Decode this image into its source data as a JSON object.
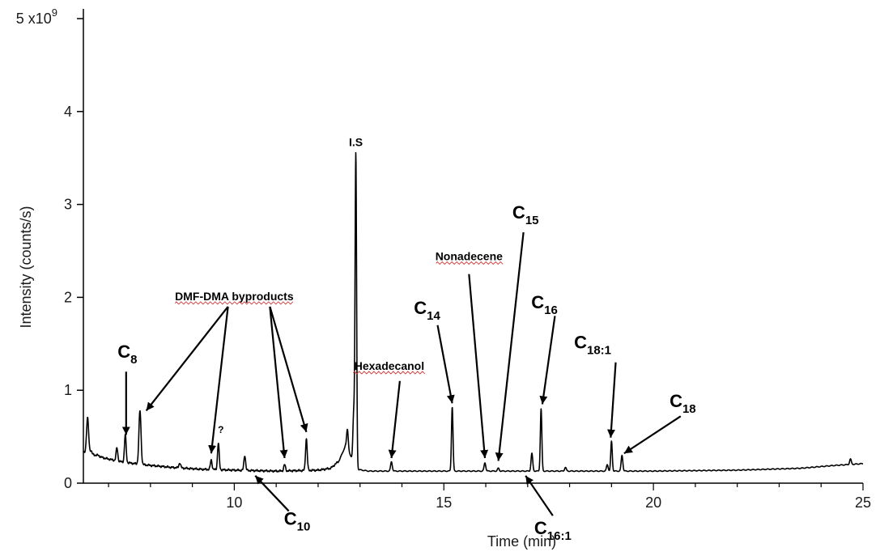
{
  "chart_data": {
    "type": "line",
    "xlabel": "Time (min)",
    "ylabel": "Intensity (counts/s)",
    "y_exponent_label": "x10",
    "y_exponent_power": "9",
    "xlim": [
      6.4,
      25
    ],
    "ylim": [
      0,
      5
    ],
    "x_ticks": [
      {
        "value": 10,
        "label": "10"
      },
      {
        "value": 15,
        "label": "15"
      },
      {
        "value": 20,
        "label": "20"
      },
      {
        "value": 25,
        "label": "25"
      }
    ],
    "y_ticks": [
      {
        "value": 0,
        "label": "0"
      },
      {
        "value": 1,
        "label": "1"
      },
      {
        "value": 2,
        "label": "2"
      },
      {
        "value": 3,
        "label": "3"
      },
      {
        "value": 4,
        "label": "4"
      },
      {
        "value": 5,
        "label": "5"
      }
    ],
    "grid": false,
    "line_color": "#000000",
    "baseline": [
      [
        6.4,
        0.33
      ],
      [
        6.55,
        0.32
      ],
      [
        6.9,
        0.27
      ],
      [
        7.3,
        0.23
      ],
      [
        7.8,
        0.2
      ],
      [
        8.5,
        0.17
      ],
      [
        9.2,
        0.15
      ],
      [
        10.0,
        0.14
      ],
      [
        11.0,
        0.13
      ],
      [
        12.0,
        0.14
      ],
      [
        12.3,
        0.16
      ],
      [
        12.5,
        0.24
      ],
      [
        12.65,
        0.4
      ],
      [
        12.75,
        0.32
      ],
      [
        12.9,
        0.15
      ],
      [
        13.2,
        0.13
      ],
      [
        15.0,
        0.13
      ],
      [
        18.0,
        0.13
      ],
      [
        20.0,
        0.13
      ],
      [
        22.0,
        0.14
      ],
      [
        23.5,
        0.16
      ],
      [
        24.3,
        0.19
      ],
      [
        25.0,
        0.21
      ]
    ],
    "peaks": [
      {
        "rt": 6.5,
        "height": 0.7,
        "width": 0.025
      },
      {
        "rt": 6.58,
        "height": 0.35,
        "width": 0.02
      },
      {
        "rt": 6.75,
        "height": 0.3,
        "width": 0.03
      },
      {
        "rt": 7.2,
        "height": 0.38,
        "width": 0.02
      },
      {
        "rt": 7.4,
        "height": 0.52,
        "width": 0.02
      },
      {
        "rt": 7.75,
        "height": 0.78,
        "width": 0.025
      },
      {
        "rt": 8.7,
        "height": 0.22,
        "width": 0.02
      },
      {
        "rt": 9.45,
        "height": 0.25,
        "width": 0.02
      },
      {
        "rt": 9.62,
        "height": 0.43,
        "width": 0.02
      },
      {
        "rt": 10.25,
        "height": 0.3,
        "width": 0.02
      },
      {
        "rt": 11.2,
        "height": 0.2,
        "width": 0.02
      },
      {
        "rt": 11.72,
        "height": 0.48,
        "width": 0.02
      },
      {
        "rt": 12.7,
        "height": 0.58,
        "width": 0.02
      },
      {
        "rt": 12.85,
        "height": 0.75,
        "width": 0.02
      },
      {
        "rt": 12.9,
        "height": 3.53,
        "width": 0.018
      },
      {
        "rt": 13.75,
        "height": 0.23,
        "width": 0.02
      },
      {
        "rt": 15.2,
        "height": 0.82,
        "width": 0.018
      },
      {
        "rt": 15.98,
        "height": 0.22,
        "width": 0.02
      },
      {
        "rt": 16.3,
        "height": 0.16,
        "width": 0.02
      },
      {
        "rt": 17.1,
        "height": 0.32,
        "width": 0.02
      },
      {
        "rt": 17.32,
        "height": 0.8,
        "width": 0.018
      },
      {
        "rt": 17.9,
        "height": 0.17,
        "width": 0.02
      },
      {
        "rt": 18.9,
        "height": 0.2,
        "width": 0.02
      },
      {
        "rt": 19.0,
        "height": 0.45,
        "width": 0.018
      },
      {
        "rt": 19.25,
        "height": 0.3,
        "width": 0.02
      },
      {
        "rt": 24.7,
        "height": 0.26,
        "width": 0.02
      }
    ],
    "peak_labels": [
      {
        "id": "c8",
        "main": "C",
        "sub": "8",
        "size": "lg",
        "label_rt": 7.45,
        "label_y": 1.35,
        "arrows": [
          {
            "from_rt": 7.42,
            "from_y": 1.2,
            "to_rt": 7.42,
            "to_y": 0.52
          }
        ]
      },
      {
        "id": "dmf",
        "main": "DMF-DMA byproducts",
        "sub": "",
        "size": "md",
        "label_rt": 10.0,
        "label_y": 1.97,
        "underline": "Whole",
        "arrows": [
          {
            "from_rt": 9.85,
            "from_y": 1.9,
            "to_rt": 7.9,
            "to_y": 0.78
          },
          {
            "from_rt": 9.85,
            "from_y": 1.9,
            "to_rt": 9.45,
            "to_y": 0.32
          },
          {
            "from_rt": 10.85,
            "from_y": 1.9,
            "to_rt": 11.2,
            "to_y": 0.27
          },
          {
            "from_rt": 10.85,
            "from_y": 1.9,
            "to_rt": 11.72,
            "to_y": 0.55
          }
        ]
      },
      {
        "id": "question",
        "main": "?",
        "sub": "",
        "size": "sm",
        "label_rt": 9.68,
        "label_y": 0.54,
        "arrows": []
      },
      {
        "id": "c10",
        "main": "C",
        "sub": "10",
        "size": "lg",
        "label_rt": 11.5,
        "label_y": -0.45,
        "arrows": [
          {
            "from_rt": 11.3,
            "from_y": -0.3,
            "to_rt": 10.5,
            "to_y": 0.08
          }
        ]
      },
      {
        "id": "is",
        "main": "I.S",
        "sub": "",
        "size": "md",
        "label_rt": 12.9,
        "label_y": 3.63,
        "arrows": []
      },
      {
        "id": "hexadecanol",
        "main": "Hexadecanol",
        "sub": "",
        "size": "md",
        "label_rt": 13.7,
        "label_y": 1.22,
        "underline": "Hexadecanol",
        "arrows": [
          {
            "from_rt": 13.95,
            "from_y": 1.1,
            "to_rt": 13.75,
            "to_y": 0.27
          }
        ]
      },
      {
        "id": "c14",
        "main": "C",
        "sub": "14",
        "size": "lg",
        "label_rt": 14.6,
        "label_y": 1.82,
        "arrows": [
          {
            "from_rt": 14.85,
            "from_y": 1.7,
            "to_rt": 15.2,
            "to_y": 0.86
          }
        ]
      },
      {
        "id": "nonadecene",
        "main": "Nonadecene",
        "sub": "",
        "size": "md",
        "label_rt": 15.6,
        "label_y": 2.4,
        "underline": "Nonadecene",
        "arrows": [
          {
            "from_rt": 15.6,
            "from_y": 2.25,
            "to_rt": 15.98,
            "to_y": 0.27
          }
        ]
      },
      {
        "id": "c15",
        "main": "C",
        "sub": "15",
        "size": "lg",
        "label_rt": 16.95,
        "label_y": 2.85,
        "arrows": [
          {
            "from_rt": 16.9,
            "from_y": 2.7,
            "to_rt": 16.3,
            "to_y": 0.24
          }
        ]
      },
      {
        "id": "c16",
        "main": "C",
        "sub": "16",
        "size": "lg",
        "label_rt": 17.4,
        "label_y": 1.88,
        "arrows": [
          {
            "from_rt": 17.65,
            "from_y": 1.8,
            "to_rt": 17.35,
            "to_y": 0.85
          }
        ]
      },
      {
        "id": "c16_1",
        "main": "C",
        "sub": "16:1",
        "size": "lg",
        "label_rt": 17.6,
        "label_y": -0.55,
        "arrows": [
          {
            "from_rt": 17.6,
            "from_y": -0.35,
            "to_rt": 16.95,
            "to_y": 0.08
          }
        ]
      },
      {
        "id": "c18_1",
        "main": "C",
        "sub": "18:1",
        "size": "lg",
        "label_rt": 18.55,
        "label_y": 1.45,
        "arrows": [
          {
            "from_rt": 19.1,
            "from_y": 1.3,
            "to_rt": 18.98,
            "to_y": 0.49
          }
        ]
      },
      {
        "id": "c18",
        "main": "C",
        "sub": "18",
        "size": "lg",
        "label_rt": 20.7,
        "label_y": 0.82,
        "arrows": [
          {
            "from_rt": 20.65,
            "from_y": 0.72,
            "to_rt": 19.3,
            "to_y": 0.32
          }
        ]
      }
    ]
  }
}
